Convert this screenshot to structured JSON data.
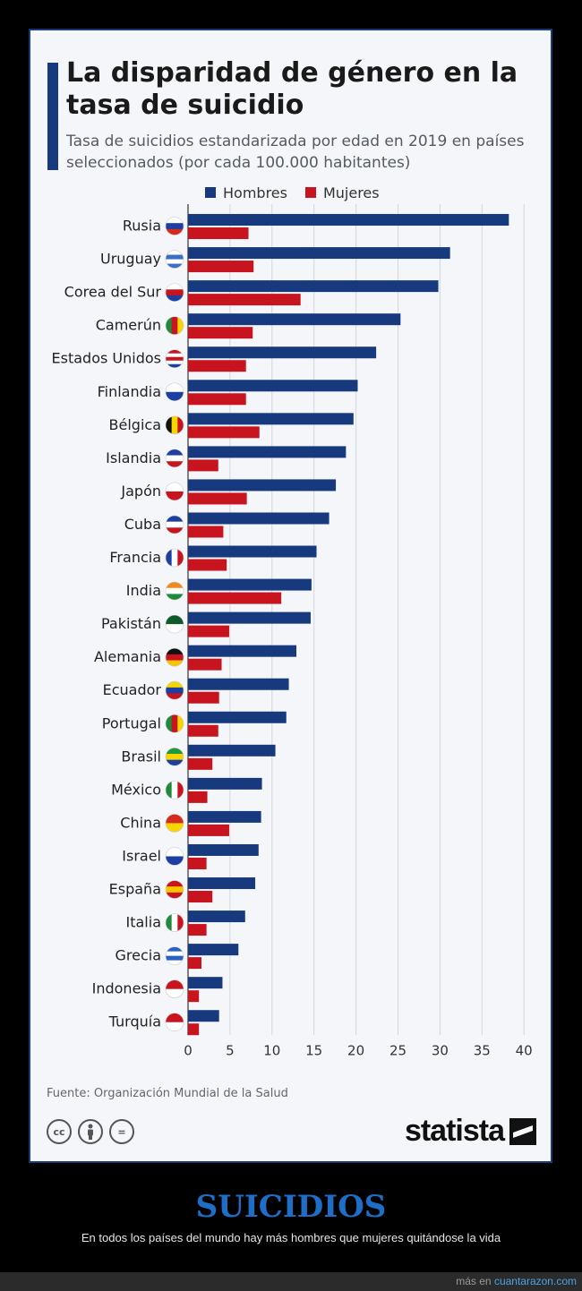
{
  "card": {
    "title": "La disparidad de género en la tasa de suicidio",
    "subtitle": "Tasa de suicidios estandarizada por edad en 2019 en países seleccionados (por cada 100.000 habitantes)",
    "source": "Fuente: Organización Mundial de la Salud",
    "brand": "statista",
    "license_icons": [
      "cc",
      "by",
      "="
    ]
  },
  "colors": {
    "hombres": "#17397e",
    "mujeres": "#c8141e"
  },
  "chart_data": {
    "type": "bar",
    "orientation": "horizontal",
    "title": "La disparidad de género en la tasa de suicidio",
    "subtitle": "Tasa de suicidios estandarizada por edad en 2019 en países seleccionados (por cada 100.000 habitantes)",
    "categories": [
      "Rusia",
      "Uruguay",
      "Corea del Sur",
      "Camerún",
      "Estados Unidos",
      "Finlandia",
      "Bélgica",
      "Islandia",
      "Japón",
      "Cuba",
      "Francia",
      "India",
      "Pakistán",
      "Alemania",
      "Ecuador",
      "Portugal",
      "Brasil",
      "México",
      "China",
      "Israel",
      "España",
      "Italia",
      "Grecia",
      "Indonesia",
      "Turquía"
    ],
    "flag_icons": [
      "russia-flag-icon",
      "uruguay-flag-icon",
      "south-korea-flag-icon",
      "cameroon-flag-icon",
      "usa-flag-icon",
      "finland-flag-icon",
      "belgium-flag-icon",
      "iceland-flag-icon",
      "japan-flag-icon",
      "cuba-flag-icon",
      "france-flag-icon",
      "india-flag-icon",
      "pakistan-flag-icon",
      "germany-flag-icon",
      "ecuador-flag-icon",
      "portugal-flag-icon",
      "brazil-flag-icon",
      "mexico-flag-icon",
      "china-flag-icon",
      "israel-flag-icon",
      "spain-flag-icon",
      "italy-flag-icon",
      "greece-flag-icon",
      "indonesia-flag-icon",
      "turkey-flag-icon"
    ],
    "series": [
      {
        "name": "Hombres",
        "values": [
          38.2,
          31.2,
          29.8,
          25.3,
          22.4,
          20.2,
          19.7,
          18.8,
          17.6,
          16.8,
          15.3,
          14.7,
          14.6,
          12.9,
          12.0,
          11.7,
          10.4,
          8.8,
          8.7,
          8.4,
          8.0,
          6.8,
          6.0,
          4.1,
          3.7
        ]
      },
      {
        "name": "Mujeres",
        "values": [
          7.2,
          7.8,
          13.4,
          7.7,
          6.9,
          6.9,
          8.5,
          3.6,
          7.0,
          4.2,
          4.6,
          11.1,
          4.9,
          4.0,
          3.7,
          3.6,
          2.9,
          2.3,
          4.9,
          2.2,
          2.9,
          2.2,
          1.6,
          1.3,
          1.3
        ]
      }
    ],
    "x_ticks": [
      "0",
      "5",
      "10",
      "15",
      "20",
      "25",
      "30",
      "35",
      "40"
    ],
    "xlim": [
      0,
      40
    ],
    "grid": true,
    "legend": "top"
  },
  "caption": {
    "title": "SUICIDIOS",
    "text": "En todos los países del mundo hay más hombres que mujeres quitándose la vida"
  },
  "footer": {
    "prefix": "más en",
    "link": "cuantarazon.com"
  }
}
